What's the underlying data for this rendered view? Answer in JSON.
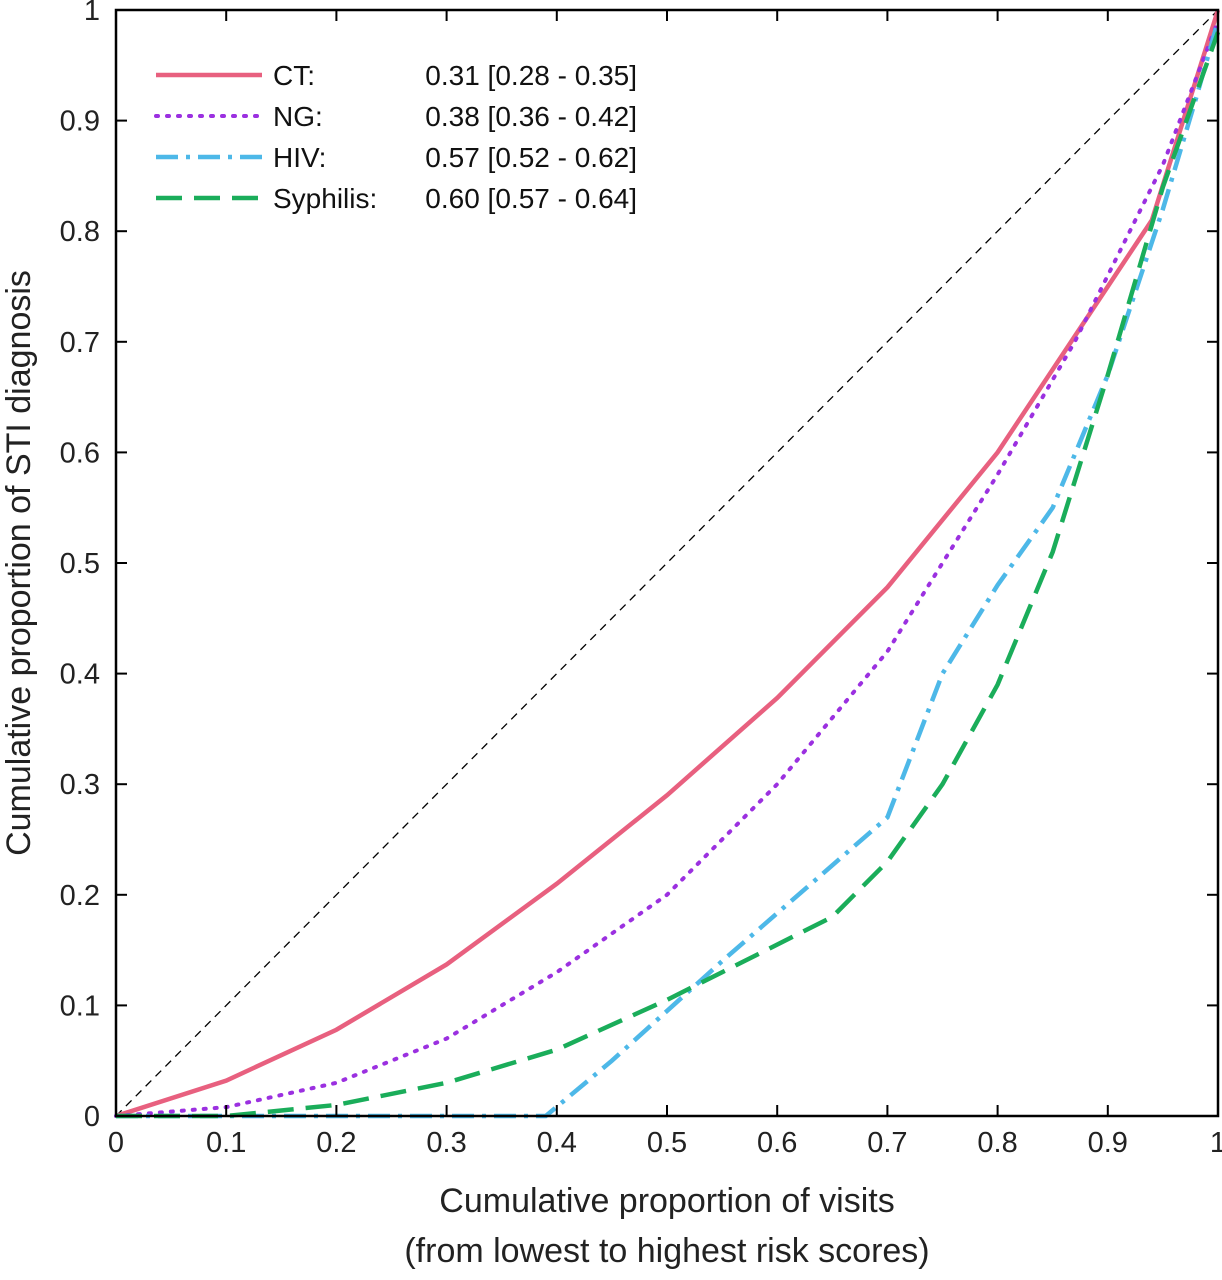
{
  "chart_data": {
    "type": "line",
    "title": "",
    "xlabel": "Cumulative proportion of visits",
    "xlabel2": "(from lowest to highest risk scores)",
    "ylabel": "Cumulative proportion of STI diagnosis",
    "xlim": [
      0,
      1
    ],
    "ylim": [
      0,
      1
    ],
    "xticks": [
      "0",
      "0.1",
      "0.2",
      "0.3",
      "0.4",
      "0.5",
      "0.6",
      "0.7",
      "0.8",
      "0.9",
      "1"
    ],
    "yticks": [
      "0",
      "0.1",
      "0.2",
      "0.3",
      "0.4",
      "0.5",
      "0.6",
      "0.7",
      "0.8",
      "0.9",
      "1"
    ],
    "grid": false,
    "legend_position": "top-left",
    "reference_line": {
      "style": "dashed",
      "color": "#000000",
      "x": [
        0,
        1
      ],
      "y": [
        0,
        1
      ]
    },
    "series": [
      {
        "name": "CT:",
        "stat": "0.31 [0.28 - 0.35]",
        "color": "#e8607f",
        "style": "solid",
        "x": [
          0,
          0.1,
          0.2,
          0.3,
          0.4,
          0.5,
          0.6,
          0.7,
          0.8,
          0.9,
          0.94,
          1
        ],
        "y": [
          0,
          0.032,
          0.078,
          0.137,
          0.21,
          0.29,
          0.378,
          0.478,
          0.6,
          0.75,
          0.81,
          1
        ]
      },
      {
        "name": "NG:",
        "stat": "0.38 [0.36 - 0.42]",
        "color": "#9b30e0",
        "style": "dotted",
        "x": [
          0,
          0.1,
          0.2,
          0.3,
          0.4,
          0.5,
          0.6,
          0.7,
          0.8,
          0.87,
          0.9,
          0.95,
          1
        ],
        "y": [
          0,
          0.008,
          0.03,
          0.07,
          0.13,
          0.2,
          0.3,
          0.42,
          0.58,
          0.7,
          0.76,
          0.86,
          0.99
        ]
      },
      {
        "name": "HIV:",
        "stat": "0.57 [0.52 - 0.62]",
        "color": "#4db8e8",
        "style": "dashdot",
        "x": [
          0,
          0.39,
          0.45,
          0.55,
          0.7,
          0.75,
          0.8,
          0.85,
          0.9,
          0.95,
          0.98,
          1
        ],
        "y": [
          0,
          0,
          0.05,
          0.14,
          0.27,
          0.4,
          0.48,
          0.55,
          0.67,
          0.82,
          0.92,
          0.99
        ]
      },
      {
        "name": "Syphilis:",
        "stat": "0.60 [0.57 - 0.64]",
        "color": "#1aad5a",
        "style": "dashed",
        "x": [
          0,
          0.1,
          0.2,
          0.3,
          0.4,
          0.5,
          0.55,
          0.65,
          0.7,
          0.75,
          0.8,
          0.85,
          0.9,
          0.95,
          1
        ],
        "y": [
          0,
          0,
          0.01,
          0.03,
          0.06,
          0.105,
          0.13,
          0.18,
          0.23,
          0.3,
          0.39,
          0.51,
          0.67,
          0.84,
          0.98
        ]
      }
    ]
  }
}
